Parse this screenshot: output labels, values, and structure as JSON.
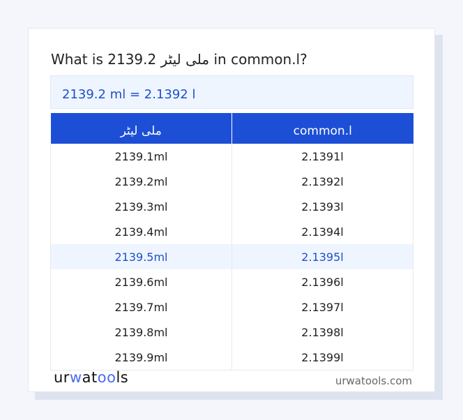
{
  "title": "What is 2139.2 ملی لیٹر in common.l?",
  "result": "2139.2 ml = 2.1392 l",
  "table": {
    "headers": [
      "ملی لیٹر",
      "common.l"
    ],
    "rows": [
      [
        "2139.1ml",
        "2.1391l"
      ],
      [
        "2139.2ml",
        "2.1392l"
      ],
      [
        "2139.3ml",
        "2.1393l"
      ],
      [
        "2139.4ml",
        "2.1394l"
      ],
      [
        "2139.5ml",
        "2.1395l"
      ],
      [
        "2139.6ml",
        "2.1396l"
      ],
      [
        "2139.7ml",
        "2.1397l"
      ],
      [
        "2139.8ml",
        "2.1398l"
      ],
      [
        "2139.9ml",
        "2.1399l"
      ]
    ],
    "highlighted_row": 4
  },
  "logo": {
    "part1": "ur",
    "part2": "w",
    "part3": "at",
    "part4": "oo",
    "part5": "ls"
  },
  "site": "urwatools.com",
  "colors": {
    "accent": "#1d4fd6",
    "highlight_bg": "#eef5ff",
    "highlight_text": "#1e50c8"
  }
}
